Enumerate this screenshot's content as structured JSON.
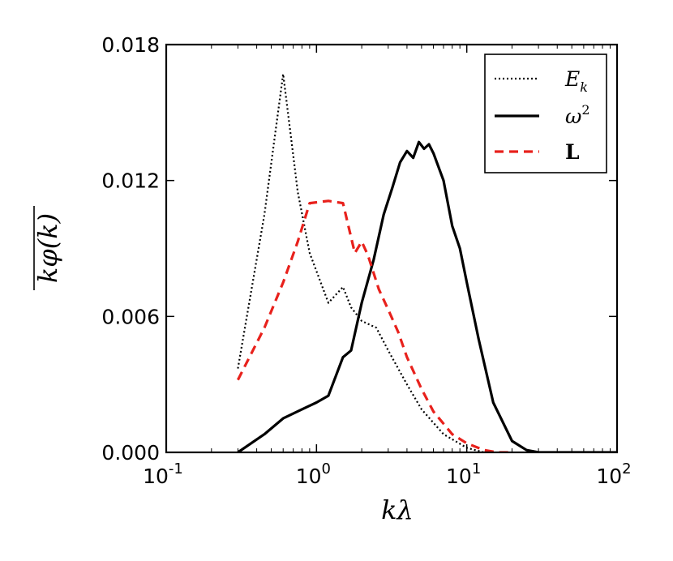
{
  "chart_data": {
    "type": "line",
    "xscale": "log",
    "xlim": [
      0.1,
      100
    ],
    "ylim": [
      0,
      0.018
    ],
    "xticks": [
      {
        "base": "10",
        "exp": "-1"
      },
      {
        "base": "10",
        "exp": "0"
      },
      {
        "base": "10",
        "exp": "1"
      },
      {
        "base": "10",
        "exp": "2"
      }
    ],
    "yticks": [
      "0.000",
      "0.006",
      "0.012",
      "0.018"
    ],
    "ytick_values": [
      0,
      0.006,
      0.012,
      0.018
    ],
    "xlabel": "kλ",
    "ylabel": "kφ(k)",
    "legend_position": "upper right",
    "series": [
      {
        "name": "E_k",
        "legend_label": "E",
        "legend_sub": "k",
        "color": "#000000",
        "style": "dotted",
        "x": [
          0.3,
          0.45,
          0.6,
          0.75,
          0.9,
          1.2,
          1.5,
          1.7,
          2.0,
          2.5,
          3.0,
          4.0,
          5.0,
          7.0,
          10.0,
          13.0
        ],
        "y": [
          0.0037,
          0.0105,
          0.0167,
          0.0115,
          0.0088,
          0.0066,
          0.0073,
          0.0064,
          0.0058,
          0.0055,
          0.0045,
          0.003,
          0.0019,
          0.0008,
          0.0002,
          0.0
        ]
      },
      {
        "name": "ω²",
        "legend_label": "ω",
        "legend_sup": "2",
        "color": "#000000",
        "style": "solid",
        "x": [
          0.3,
          0.45,
          0.6,
          0.8,
          1.0,
          1.2,
          1.5,
          1.7,
          2.0,
          2.4,
          2.8,
          3.2,
          3.6,
          4.0,
          4.4,
          4.8,
          5.2,
          5.6,
          6.0,
          7.0,
          8.0,
          9.0,
          10.0,
          12.0,
          15.0,
          20.0,
          25.0,
          30.0,
          40.0,
          100.0
        ],
        "y": [
          0.0,
          0.0008,
          0.0015,
          0.0019,
          0.0022,
          0.0025,
          0.0042,
          0.0045,
          0.0066,
          0.0085,
          0.0105,
          0.0117,
          0.0128,
          0.0133,
          0.013,
          0.0137,
          0.0134,
          0.0136,
          0.0132,
          0.012,
          0.01,
          0.009,
          0.0075,
          0.005,
          0.0022,
          0.0005,
          0.0001,
          0.0,
          0.0,
          0.0
        ]
      },
      {
        "name": "L",
        "legend_label": "L",
        "color": "#e8211c",
        "style": "dashed",
        "x": [
          0.3,
          0.45,
          0.6,
          0.75,
          0.9,
          1.2,
          1.5,
          1.8,
          2.0,
          2.2,
          2.6,
          3.0,
          3.5,
          4.0,
          5.0,
          6.0,
          8.0,
          10.0,
          13.0,
          16.0,
          20.0
        ],
        "y": [
          0.0032,
          0.0055,
          0.0075,
          0.0093,
          0.011,
          0.0111,
          0.011,
          0.0088,
          0.0093,
          0.0087,
          0.0072,
          0.0063,
          0.0053,
          0.0042,
          0.0028,
          0.0018,
          0.0008,
          0.0004,
          0.0001,
          0.0,
          0.0
        ]
      }
    ]
  }
}
